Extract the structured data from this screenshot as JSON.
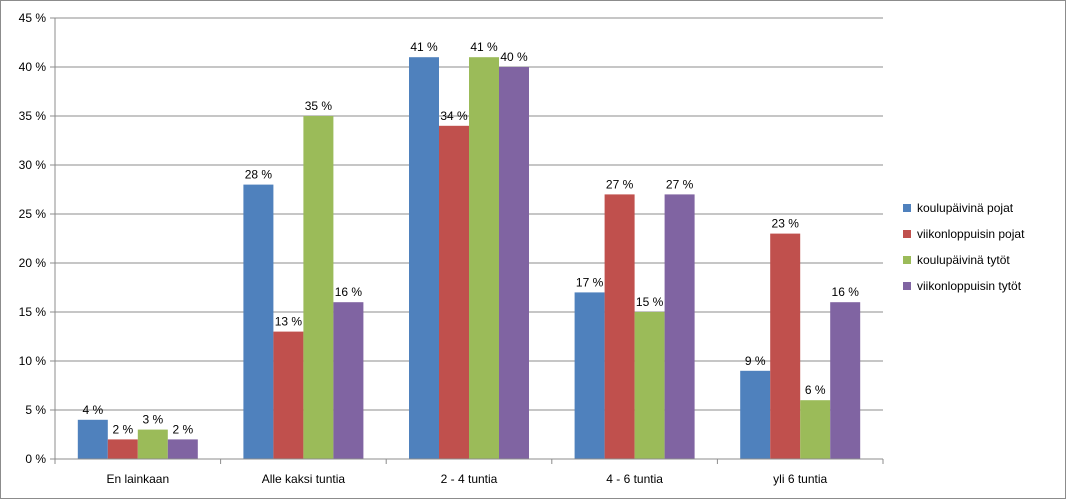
{
  "chart_data": {
    "type": "bar",
    "title": "",
    "xlabel": "",
    "ylabel": "",
    "categories": [
      "En lainkaan",
      "Alle kaksi tuntia",
      "2 - 4 tuntia",
      "4 - 6 tuntia",
      "yli 6 tuntia"
    ],
    "series": [
      {
        "name": "koulupäivinä pojat",
        "color": "#4f81bd",
        "values": [
          4,
          28,
          41,
          17,
          9
        ]
      },
      {
        "name": "viikonloppuisin pojat",
        "color": "#c0504d",
        "values": [
          2,
          13,
          34,
          27,
          23
        ]
      },
      {
        "name": "koulupäivinä tytöt",
        "color": "#9bbb59",
        "values": [
          3,
          35,
          41,
          15,
          6
        ]
      },
      {
        "name": "viikonloppuisin tytöt",
        "color": "#8064a2",
        "values": [
          2,
          16,
          40,
          27,
          16
        ]
      }
    ],
    "ylim": [
      0,
      45
    ],
    "y_ticks": [
      0,
      5,
      10,
      15,
      20,
      25,
      30,
      35,
      40,
      45
    ],
    "y_tick_labels": [
      "0 %",
      "5 %",
      "10 %",
      "15 %",
      "20 %",
      "25 %",
      "30 %",
      "35 %",
      "40 %",
      "45 %"
    ],
    "value_suffix": " %",
    "grid": true,
    "legend_position": "right"
  }
}
